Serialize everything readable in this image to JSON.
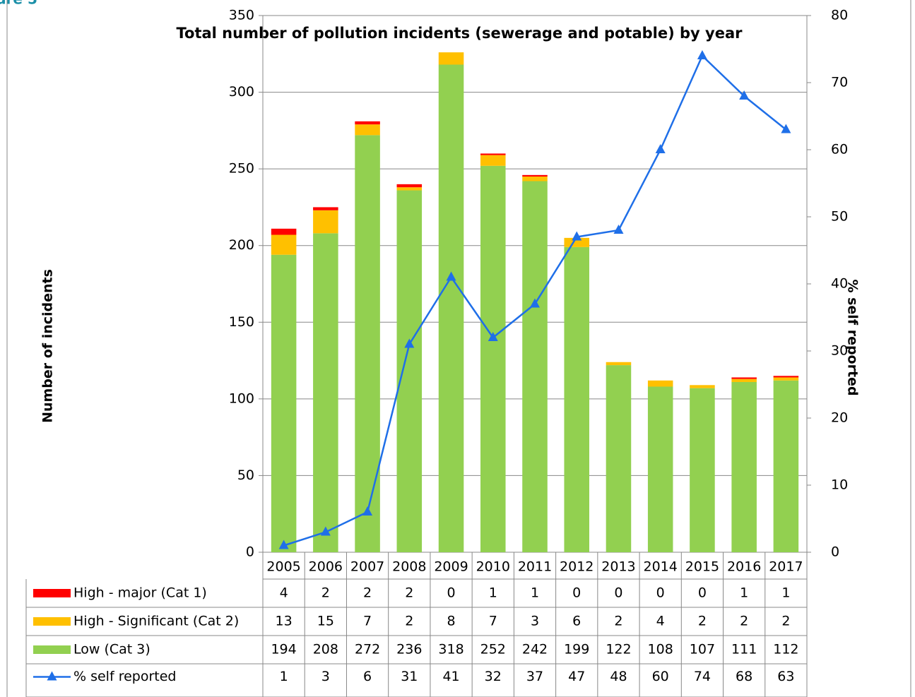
{
  "figure_label": "gure 5",
  "chart_data": {
    "type": "bar",
    "title": "Total number of pollution incidents (sewerage and potable) by year",
    "ylabel": "Number of incidents",
    "y2label": "% self reported",
    "categories": [
      "2005",
      "2006",
      "2007",
      "2008",
      "2009",
      "2010",
      "2011",
      "2012",
      "2013",
      "2014",
      "2015",
      "2016",
      "2017"
    ],
    "series": [
      {
        "name": "Low (Cat 3)",
        "color": "#92d050",
        "values": [
          194,
          208,
          272,
          236,
          318,
          252,
          242,
          199,
          122,
          108,
          107,
          111,
          112
        ]
      },
      {
        "name": "High - Significant (Cat 2)",
        "color": "#ffc000",
        "values": [
          13,
          15,
          7,
          2,
          8,
          7,
          3,
          6,
          2,
          4,
          2,
          2,
          2
        ]
      },
      {
        "name": "High - major (Cat 1)",
        "color": "#ff0000",
        "values": [
          4,
          2,
          2,
          2,
          0,
          1,
          1,
          0,
          0,
          0,
          0,
          1,
          1
        ]
      },
      {
        "name": "% self reported",
        "color": "#1f6fe8",
        "type": "line",
        "axis": "y2",
        "values": [
          1,
          3,
          6,
          31,
          41,
          32,
          37,
          47,
          48,
          60,
          74,
          68,
          63
        ]
      }
    ],
    "legend_order": [
      2,
      1,
      0,
      3
    ],
    "ylim": [
      0,
      350
    ],
    "yticks": [
      0,
      50,
      100,
      150,
      200,
      250,
      300,
      350
    ],
    "y2lim": [
      0,
      80
    ],
    "y2ticks": [
      0,
      10,
      20,
      30,
      40,
      50,
      60,
      70,
      80
    ],
    "grid": true
  }
}
